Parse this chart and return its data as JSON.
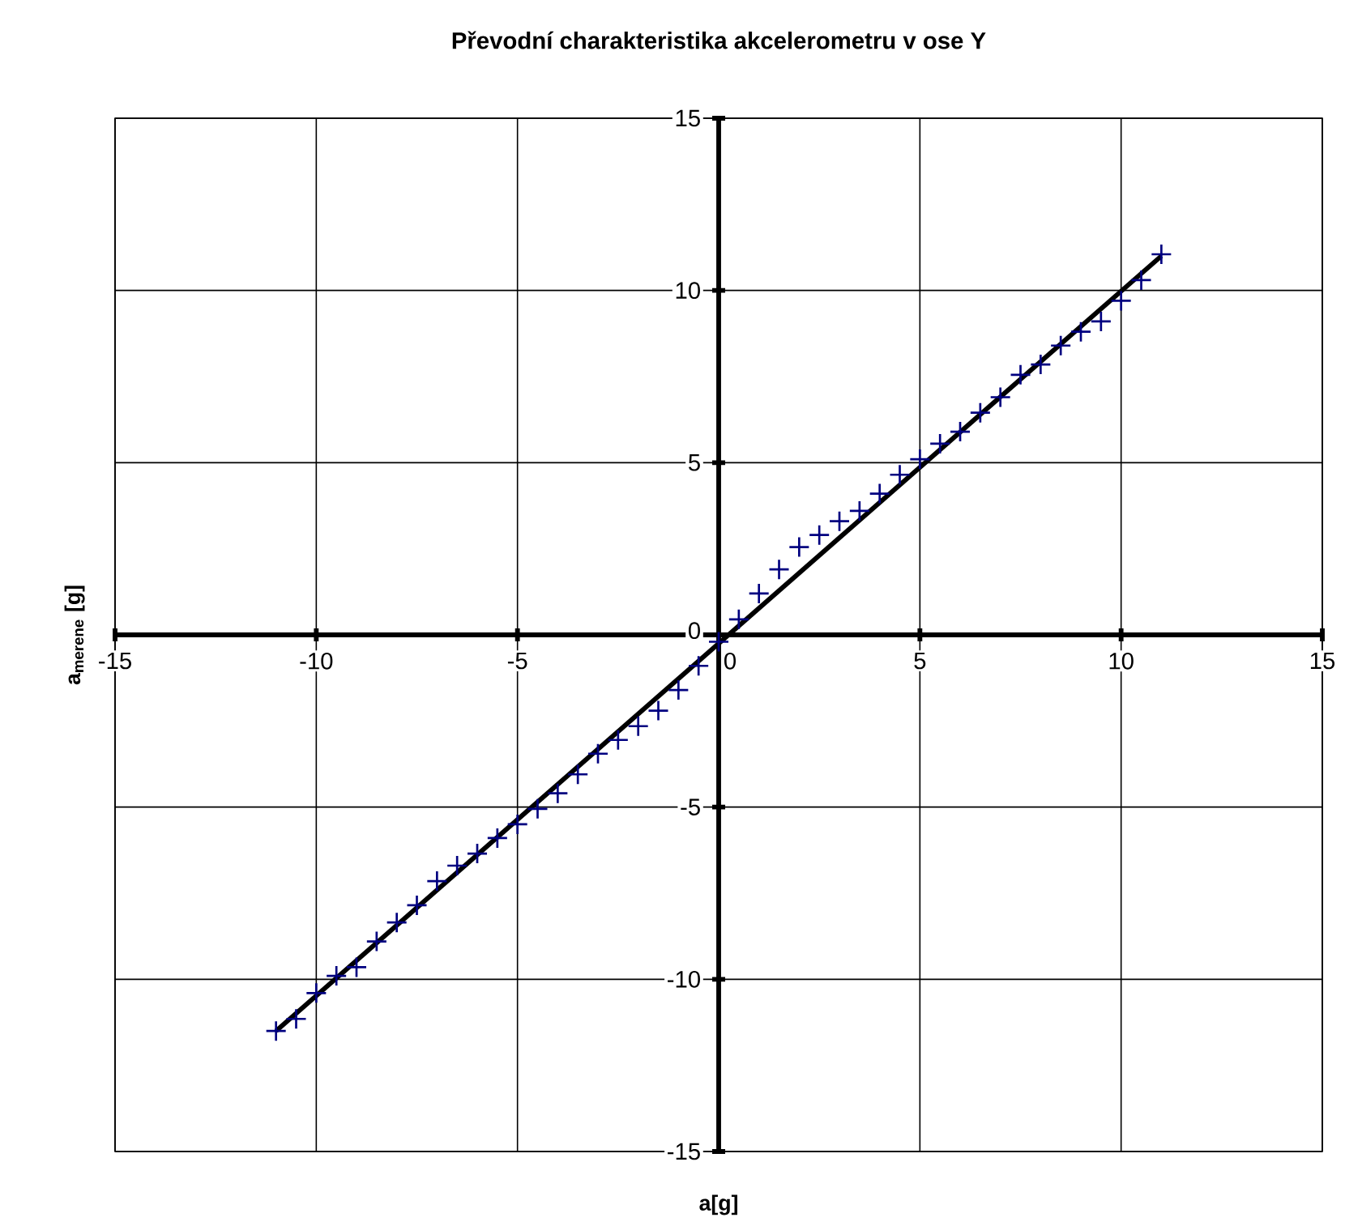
{
  "chart_data": {
    "type": "scatter",
    "title": "Převodní charakteristika akcelerometru v ose Y",
    "xlabel": "a[g]",
    "ylabel": "a$_{merene}$ [g]",
    "x": [
      -11,
      -10.5,
      -10,
      -9.5,
      -9,
      -8.5,
      -8,
      -7.5,
      -7,
      -6.5,
      -6,
      -5.5,
      -5,
      -4.5,
      -4,
      -3.5,
      -3,
      -2.5,
      -2,
      -1.5,
      -1,
      -0.5,
      0,
      0.5,
      1,
      1.5,
      2,
      2.5,
      3,
      3.5,
      4,
      4.5,
      5,
      5.5,
      6,
      6.5,
      7,
      7.5,
      8,
      8.5,
      9,
      9.5,
      10,
      10.5,
      11
    ],
    "series": [
      {
        "color": "#000080",
        "marker": "cross",
        "values": [
          -11.5,
          -11.15,
          -10.4,
          -9.9,
          -9.65,
          -8.9,
          -8.35,
          -7.85,
          -7.15,
          -6.7,
          -6.35,
          -5.9,
          -5.5,
          -5.05,
          -4.6,
          -4.05,
          -3.45,
          -3.05,
          -2.65,
          -2.2,
          -1.6,
          -0.9,
          -0.2,
          0.45,
          1.2,
          1.9,
          2.55,
          2.9,
          3.3,
          3.6,
          4.1,
          4.65,
          5.1,
          5.55,
          5.9,
          6.45,
          6.9,
          7.55,
          7.85,
          8.4,
          8.8,
          9.1,
          9.7,
          10.3,
          11.05
        ]
      },
      {
        "type": "line",
        "color": "#000000",
        "marker": "none",
        "line_style": "solid",
        "x": [
          -11,
          11
        ],
        "values": [
          -11.5,
          11.0
        ]
      }
    ],
    "xlim": [
      -15,
      15
    ],
    "ylim": [
      -15,
      15
    ],
    "xticks": [
      -15,
      -10,
      -5,
      0,
      5,
      10,
      15
    ],
    "yticks": [
      -15,
      -10,
      -5,
      0,
      5,
      10,
      15
    ],
    "grid": true
  }
}
